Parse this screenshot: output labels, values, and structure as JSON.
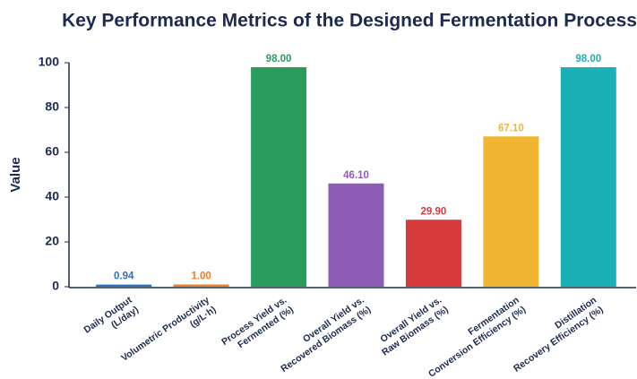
{
  "chart_data": {
    "type": "bar",
    "title": "Key Performance Metrics of the Designed Fermentation Process",
    "y_label": "Value",
    "categories": [
      [
        "Daily Output",
        "(L/day)"
      ],
      [
        "Volumetric Productivity",
        "(g/L·h)"
      ],
      [
        "Process Yield vs.",
        "Fermented (%)"
      ],
      [
        "Overall Yield vs.",
        "Recovered Biomass (%)"
      ],
      [
        "Overall Yield vs.",
        "Raw Biomass (%)"
      ],
      [
        "Fermentation",
        "Conversion Efficiency (%)"
      ],
      [
        "Distillation",
        "Recovery Efficiency (%)"
      ]
    ],
    "values": [
      0.94,
      1.0,
      98.0,
      46.1,
      29.9,
      67.1,
      98.0
    ],
    "value_labels": [
      "0.94",
      "1.00",
      "98.00",
      "46.10",
      "29.90",
      "67.10",
      "98.00"
    ],
    "colors": [
      "#2f6fbf",
      "#ee7d2b",
      "#2a9d5c",
      "#8e5cb5",
      "#d63a3a",
      "#f2b531",
      "#1bb0b5"
    ],
    "ylim": [
      0,
      100
    ],
    "yticks": [
      0,
      20,
      40,
      60,
      80,
      100
    ],
    "grid": false
  }
}
